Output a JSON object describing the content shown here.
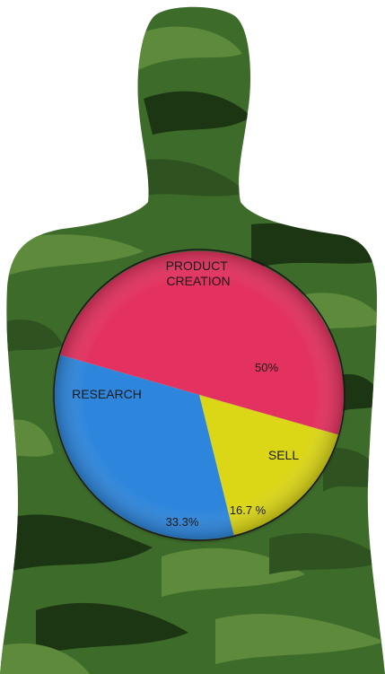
{
  "colors": {
    "background": "#ffffff",
    "silhouette_base": "#3d6b2a",
    "camo_light": "#5e8a3c",
    "camo_mid": "#2f5320",
    "camo_dark": "#1c3512",
    "pie_outline": "#1a1a1a"
  },
  "chart_data": {
    "type": "pie",
    "title": "",
    "start_angle_deg": -164,
    "direction": "clockwise",
    "slices": [
      {
        "label_lines": [
          "PRODUCT",
          "CREATION"
        ],
        "label": "PRODUCT CREATION",
        "value": 50,
        "value_label": "50%",
        "color": "#e3335e"
      },
      {
        "label_lines": [
          "SELL"
        ],
        "label": "SELL",
        "value": 16.7,
        "value_label": "16.7 %",
        "color": "#dbd617"
      },
      {
        "label_lines": [
          "RESEARCH"
        ],
        "label": "RESEARCH",
        "value": 33.3,
        "value_label": "33.3%",
        "color": "#2f86dc"
      }
    ]
  }
}
